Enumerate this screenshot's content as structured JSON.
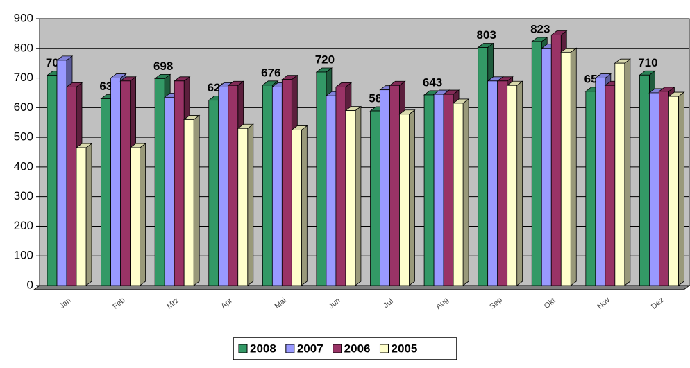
{
  "chart_data": {
    "type": "bar3d",
    "categories": [
      "Jan",
      "Feb",
      "Mrz",
      "Apr",
      "Mai",
      "Jun",
      "Jul",
      "Aug",
      "Sep",
      "Okt",
      "Nov",
      "Dez"
    ],
    "series": [
      {
        "name": "2008",
        "color": "#339966",
        "values": [
          709,
          630,
          698,
          625,
          676,
          720,
          589,
          643,
          803,
          823,
          655,
          710
        ],
        "data_labels": true
      },
      {
        "name": "2007",
        "color": "#9999ff",
        "values": [
          760,
          700,
          635,
          670,
          670,
          640,
          660,
          645,
          690,
          800,
          700,
          650
        ]
      },
      {
        "name": "2006",
        "color": "#993366",
        "values": [
          670,
          690,
          690,
          675,
          695,
          670,
          675,
          645,
          690,
          845,
          675,
          655
        ]
      },
      {
        "name": "2005",
        "color": "#ffffcc",
        "values": [
          465,
          465,
          560,
          530,
          525,
          590,
          578,
          615,
          675,
          787,
          750,
          638
        ]
      }
    ],
    "ylim": [
      0,
      900
    ],
    "yticks": [
      0,
      100,
      200,
      300,
      400,
      500,
      600,
      700,
      800,
      900
    ],
    "grid": true,
    "legend": "bottom"
  }
}
